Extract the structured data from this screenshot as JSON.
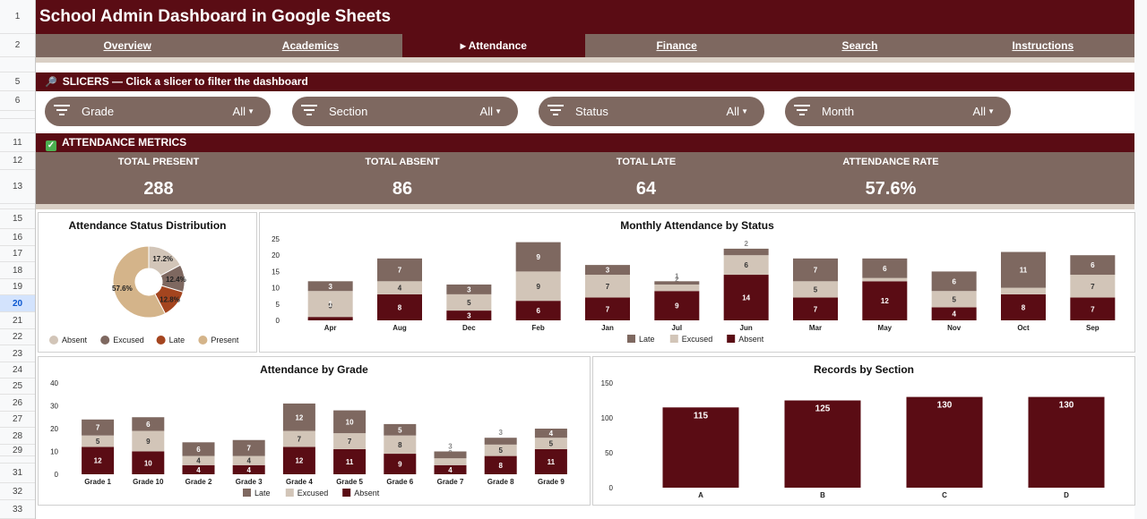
{
  "sheet": {
    "title": "School Admin Dashboard in Google Sheets",
    "row_numbers": [
      "1",
      "2",
      "",
      "5",
      "6",
      "",
      "",
      "11",
      "12",
      "13",
      "",
      "15",
      "16",
      "17",
      "18",
      "19",
      "20",
      "21",
      "22",
      "23",
      "24",
      "25",
      "26",
      "27",
      "28",
      "29",
      "",
      "31",
      "32",
      "33"
    ],
    "selected_row": "20"
  },
  "tabs": [
    {
      "label": "Overview",
      "active": false
    },
    {
      "label": "Academics",
      "active": false
    },
    {
      "label": "▸ Attendance",
      "active": true
    },
    {
      "label": "Finance",
      "active": false
    },
    {
      "label": "Search",
      "active": false
    },
    {
      "label": "Instructions",
      "active": false
    }
  ],
  "slicers": {
    "header": "SLICERS — Click a slicer to filter the dashboard",
    "header_icon": "magnifier-icon",
    "items": [
      {
        "label": "Grade",
        "value": "All"
      },
      {
        "label": "Section",
        "value": "All"
      },
      {
        "label": "Status",
        "value": "All"
      },
      {
        "label": "Month",
        "value": "All"
      }
    ]
  },
  "metrics": {
    "header": "ATTENDANCE METRICS",
    "items": [
      {
        "label": "TOTAL PRESENT",
        "value": "288"
      },
      {
        "label": "TOTAL ABSENT",
        "value": "86"
      },
      {
        "label": "TOTAL LATE",
        "value": "64"
      },
      {
        "label": "ATTENDANCE RATE",
        "value": "57.6%"
      }
    ]
  },
  "colors": {
    "maroon": "#5a0c14",
    "taupe": "#7e6860",
    "beige": "#d2c5b8",
    "rust": "#a4451f",
    "tan": "#d4b48a"
  },
  "chart_data": [
    {
      "type": "pie",
      "title": "Attendance Status Distribution",
      "categories": [
        "Absent",
        "Excused",
        "Late",
        "Present"
      ],
      "values": [
        17.2,
        12.4,
        12.8,
        57.6
      ],
      "labels": [
        "17.2%",
        "12.4%",
        "12.8%",
        "57.6%"
      ],
      "colors": [
        "#d2c5b8",
        "#7e6860",
        "#a4451f",
        "#d4b48a"
      ],
      "legend": "bottom",
      "donut": true
    },
    {
      "type": "bar",
      "stacked": true,
      "title": "Monthly Attendance by Status",
      "categories": [
        "Apr",
        "Aug",
        "Dec",
        "Feb",
        "Jan",
        "Jul",
        "Jun",
        "Mar",
        "May",
        "Nov",
        "Oct",
        "Sep"
      ],
      "series": [
        {
          "name": "Absent",
          "color": "#5a0c14",
          "values": [
            null,
            8,
            3,
            6,
            7,
            9,
            14,
            7,
            12,
            4,
            8,
            7
          ]
        },
        {
          "name": "Excused",
          "color": "#d2c5b8",
          "values": [
            9,
            4,
            5,
            9,
            7,
            2,
            6,
            5,
            1,
            5,
            2,
            7
          ]
        },
        {
          "name": "Late",
          "color": "#7e6860",
          "values": [
            3,
            7,
            3,
            9,
            3,
            1,
            2,
            7,
            6,
            6,
            11,
            6
          ]
        }
      ],
      "extra_labels": {
        "Apr": "1"
      },
      "ylim": [
        0,
        25
      ],
      "yticks": [
        0,
        5,
        10,
        15,
        20,
        25
      ],
      "legend": "bottom"
    },
    {
      "type": "bar",
      "stacked": true,
      "title": "Attendance by Grade",
      "categories": [
        "Grade 1",
        "Grade 10",
        "Grade 2",
        "Grade 3",
        "Grade 4",
        "Grade 5",
        "Grade 6",
        "Grade 7",
        "Grade 8",
        "Grade 9"
      ],
      "series": [
        {
          "name": "Absent",
          "color": "#5a0c14",
          "values": [
            12,
            10,
            4,
            4,
            12,
            11,
            9,
            4,
            8,
            11
          ]
        },
        {
          "name": "Excused",
          "color": "#d2c5b8",
          "values": [
            5,
            9,
            4,
            4,
            7,
            7,
            8,
            3,
            5,
            5
          ]
        },
        {
          "name": "Late",
          "color": "#7e6860",
          "values": [
            7,
            6,
            6,
            7,
            12,
            10,
            5,
            3,
            3,
            4
          ]
        }
      ],
      "ylim": [
        0,
        40
      ],
      "yticks": [
        0,
        10,
        20,
        30,
        40
      ],
      "legend": "bottom"
    },
    {
      "type": "bar",
      "title": "Records by Section",
      "categories": [
        "A",
        "B",
        "C",
        "D"
      ],
      "values": [
        115,
        125,
        130,
        130
      ],
      "color": "#5a0c14",
      "ylim": [
        0,
        150
      ],
      "yticks": [
        0,
        50,
        100,
        150
      ]
    }
  ]
}
